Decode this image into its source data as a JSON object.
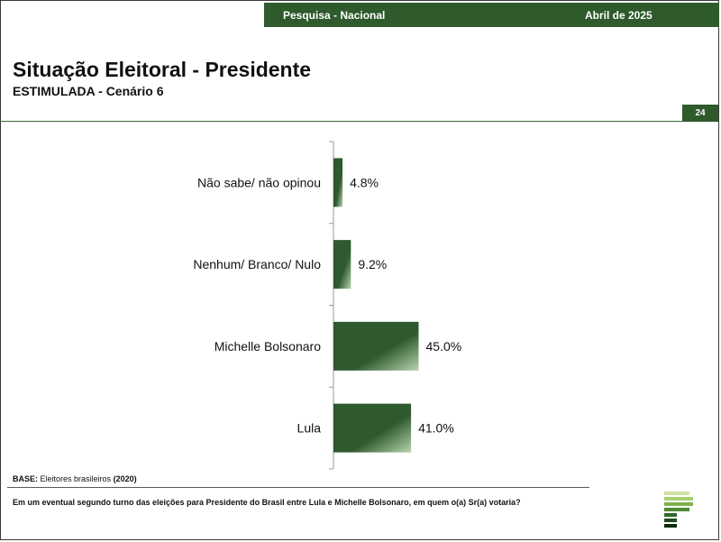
{
  "header": {
    "survey": "Pesquisa - Nacional",
    "date": "Abril de 2025",
    "page_number": "24"
  },
  "title": "Situação Eleitoral - Presidente",
  "subtitle": "ESTIMULADA - Cenário 6",
  "footer": {
    "base_label": "BASE:",
    "base_text": "Eleitores brasileiros",
    "base_year": "(2020)",
    "question": "Em um eventual segundo turno das eleições para Presidente do Brasil entre Lula e Michelle Bolsonaro, em quem o(a) Sr(a) votaria?"
  },
  "colors": {
    "brand": "#2e5a2c",
    "bar_dark": "#2f5a2f",
    "bar_light": "#b7d3af"
  },
  "chart_data": {
    "type": "bar",
    "orientation": "horizontal",
    "categories": [
      "Não sabe/ não opinou",
      "Nenhum/ Branco/ Nulo",
      "Michelle Bolsonaro",
      "Lula"
    ],
    "values": [
      4.8,
      9.2,
      45.0,
      41.0
    ],
    "value_labels": [
      "4.8%",
      "9.2%",
      "45.0%",
      "41.0%"
    ],
    "unit": "%",
    "xlim": [
      0,
      100
    ],
    "grid": false,
    "legend": "none"
  }
}
